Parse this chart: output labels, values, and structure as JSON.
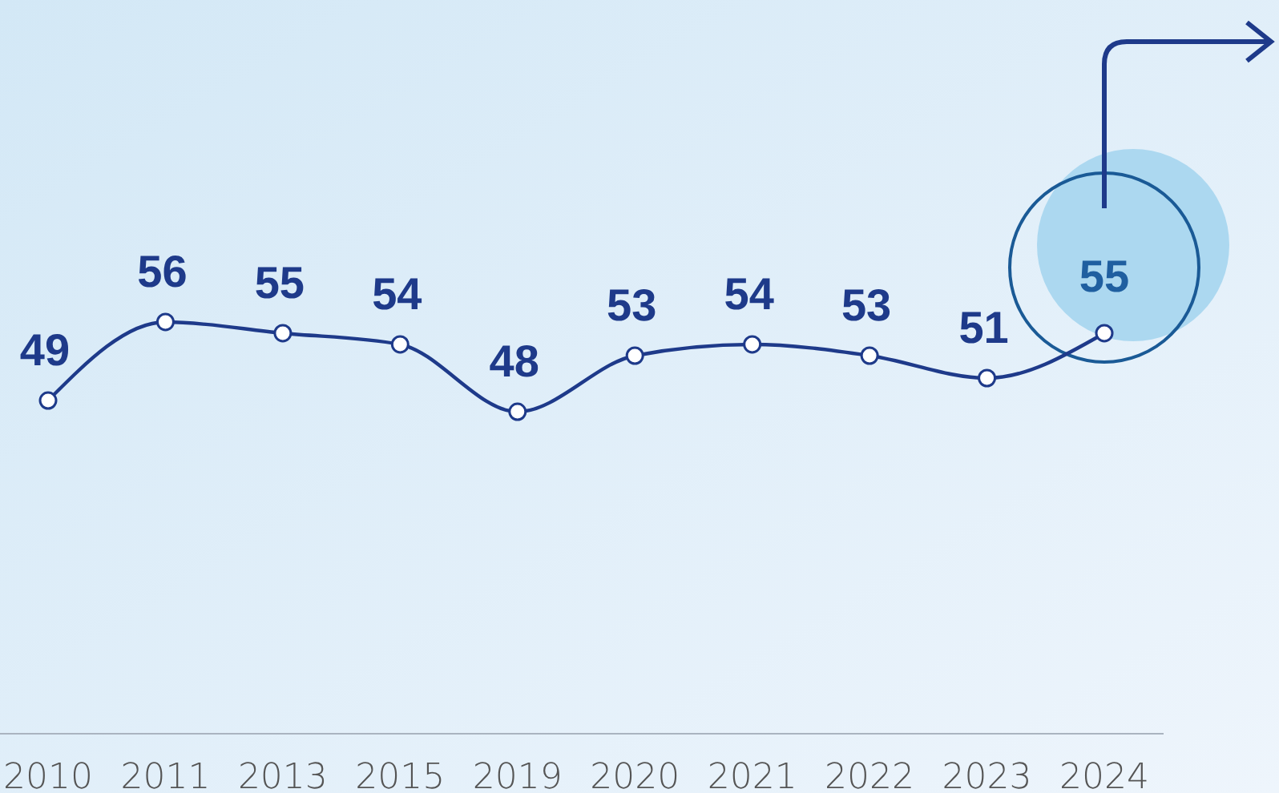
{
  "chart_data": {
    "type": "line",
    "categories": [
      "2010",
      "2011",
      "2013",
      "2015",
      "2019",
      "2020",
      "2021",
      "2022",
      "2023",
      "2024"
    ],
    "series": [
      {
        "color": "#1e3a8a",
        "values": [
          49,
          56,
          55,
          54,
          48,
          53,
          54,
          53,
          51,
          55
        ]
      }
    ],
    "ylim": [
      19.3,
      84.7
    ],
    "data_labels": true,
    "marker": "circle",
    "line_style": "solid"
  }
}
